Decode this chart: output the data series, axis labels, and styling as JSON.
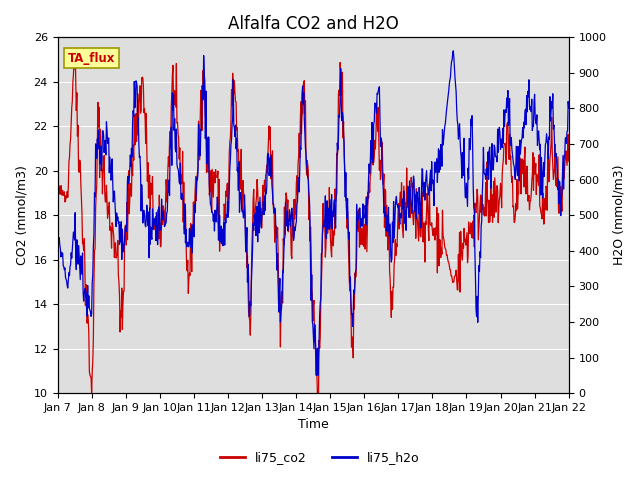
{
  "title": "Alfalfa CO2 and H2O",
  "xlabel": "Time",
  "ylabel_left": "CO2 (mmol/m3)",
  "ylabel_right": "H2O (mmol/m3)",
  "ylim_left": [
    10,
    26
  ],
  "ylim_right": [
    0,
    1000
  ],
  "yticks_left": [
    10,
    12,
    14,
    16,
    18,
    20,
    22,
    24,
    26
  ],
  "yticks_right": [
    0,
    100,
    200,
    300,
    400,
    500,
    600,
    700,
    800,
    900,
    1000
  ],
  "xtick_labels": [
    "Jan 7",
    "Jan 8",
    "Jan 9",
    "Jan 10",
    "Jan 11",
    "Jan 12",
    "Jan 13",
    "Jan 14",
    "Jan 15",
    "Jan 16",
    "Jan 17",
    "Jan 18",
    "Jan 19",
    "Jan 20",
    "Jan 21",
    "Jan 22"
  ],
  "color_co2": "#cc0000",
  "color_h2o": "#0000cc",
  "legend_co2": "li75_co2",
  "legend_h2o": "li75_h2o",
  "annotation_text": "TA_flux",
  "annotation_bg": "#ffff99",
  "annotation_border": "#999900",
  "background_color": "#dedede",
  "grid_color": "#ffffff",
  "linewidth": 0.9,
  "title_fontsize": 12,
  "axis_fontsize": 9,
  "tick_fontsize": 8
}
